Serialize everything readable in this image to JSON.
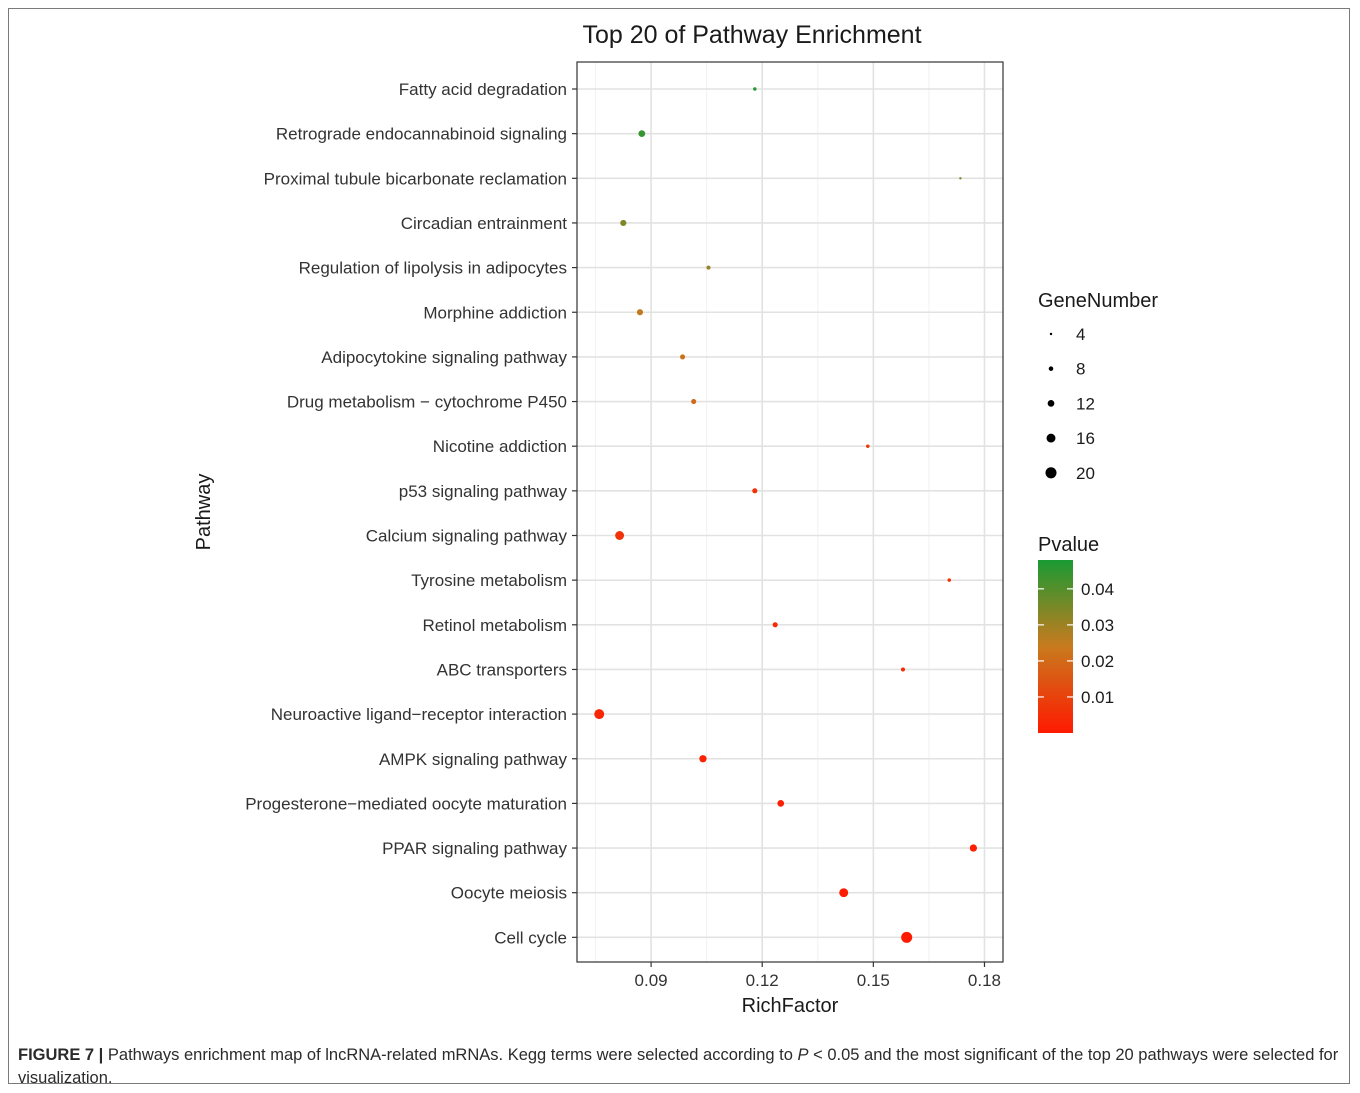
{
  "chart_data": {
    "type": "scatter",
    "title": "Top 20 of Pathway Enrichment",
    "xlabel": "RichFactor",
    "ylabel": "Pathway",
    "xlim": [
      0.07,
      0.185
    ],
    "xticks": [
      0.09,
      0.12,
      0.15,
      0.18
    ],
    "xtick_labels": [
      "0.09",
      "0.12",
      "0.15",
      "0.18"
    ],
    "grid": true,
    "points": [
      {
        "pathway": "Fatty acid degradation",
        "rich_factor": 0.118,
        "gene_number": 6,
        "pvalue": 0.046
      },
      {
        "pathway": "Retrograde endocannabinoid signaling",
        "rich_factor": 0.0875,
        "gene_number": 12,
        "pvalue": 0.044
      },
      {
        "pathway": "Proximal tubule bicarbonate reclamation",
        "rich_factor": 0.1735,
        "gene_number": 4,
        "pvalue": 0.036
      },
      {
        "pathway": "Circadian entrainment",
        "rich_factor": 0.0825,
        "gene_number": 11,
        "pvalue": 0.034
      },
      {
        "pathway": "Regulation of lipolysis in adipocytes",
        "rich_factor": 0.1055,
        "gene_number": 7,
        "pvalue": 0.031
      },
      {
        "pathway": "Morphine addiction",
        "rich_factor": 0.087,
        "gene_number": 11,
        "pvalue": 0.025
      },
      {
        "pathway": "Adipocytokine signaling pathway",
        "rich_factor": 0.0985,
        "gene_number": 9,
        "pvalue": 0.022
      },
      {
        "pathway": "Drug metabolism − cytochrome P450",
        "rich_factor": 0.1015,
        "gene_number": 9,
        "pvalue": 0.02
      },
      {
        "pathway": "Nicotine addiction",
        "rich_factor": 0.1485,
        "gene_number": 6,
        "pvalue": 0.007
      },
      {
        "pathway": "p53 signaling pathway",
        "rich_factor": 0.118,
        "gene_number": 9,
        "pvalue": 0.006
      },
      {
        "pathway": "Calcium signaling pathway",
        "rich_factor": 0.0815,
        "gene_number": 16,
        "pvalue": 0.006
      },
      {
        "pathway": "Tyrosine metabolism",
        "rich_factor": 0.1705,
        "gene_number": 6,
        "pvalue": 0.005
      },
      {
        "pathway": "Retinol metabolism",
        "rich_factor": 0.1235,
        "gene_number": 9,
        "pvalue": 0.004
      },
      {
        "pathway": "ABC transporters",
        "rich_factor": 0.158,
        "gene_number": 7,
        "pvalue": 0.004
      },
      {
        "pathway": "Neuroactive ligand−receptor interaction",
        "rich_factor": 0.076,
        "gene_number": 18,
        "pvalue": 0.003
      },
      {
        "pathway": "AMPK signaling pathway",
        "rich_factor": 0.104,
        "gene_number": 13,
        "pvalue": 0.002
      },
      {
        "pathway": "Progesterone−mediated oocyte maturation",
        "rich_factor": 0.125,
        "gene_number": 12,
        "pvalue": 0.0015
      },
      {
        "pathway": "PPAR signaling pathway",
        "rich_factor": 0.177,
        "gene_number": 13,
        "pvalue": 0.001
      },
      {
        "pathway": "Oocyte meiosis",
        "rich_factor": 0.142,
        "gene_number": 16,
        "pvalue": 0.0008
      },
      {
        "pathway": "Cell cycle",
        "rich_factor": 0.159,
        "gene_number": 20,
        "pvalue": 0.0003
      }
    ],
    "size_legend": {
      "title": "GeneNumber",
      "values": [
        4,
        8,
        12,
        16,
        20
      ],
      "labels": [
        "4",
        "8",
        "12",
        "16",
        "20"
      ]
    },
    "color_legend": {
      "title": "Pvalue",
      "range": [
        0.0,
        0.048
      ],
      "ticks": [
        0.04,
        0.03,
        0.02,
        0.01
      ],
      "tick_labels": [
        "0.04",
        "0.03",
        "0.02",
        "0.01"
      ],
      "color_low": "#ff1a00",
      "color_mid": "#c87a1e",
      "color_high": "#1a9a33"
    }
  },
  "caption": {
    "label": "FIGURE 7 |",
    "text_1": " Pathways enrichment map of lncRNA-related mRNAs. Kegg terms were selected according to ",
    "p_symbol": "P",
    "text_2": " < 0.05 and the most significant of the top 20 pathways were selected for visualization."
  }
}
